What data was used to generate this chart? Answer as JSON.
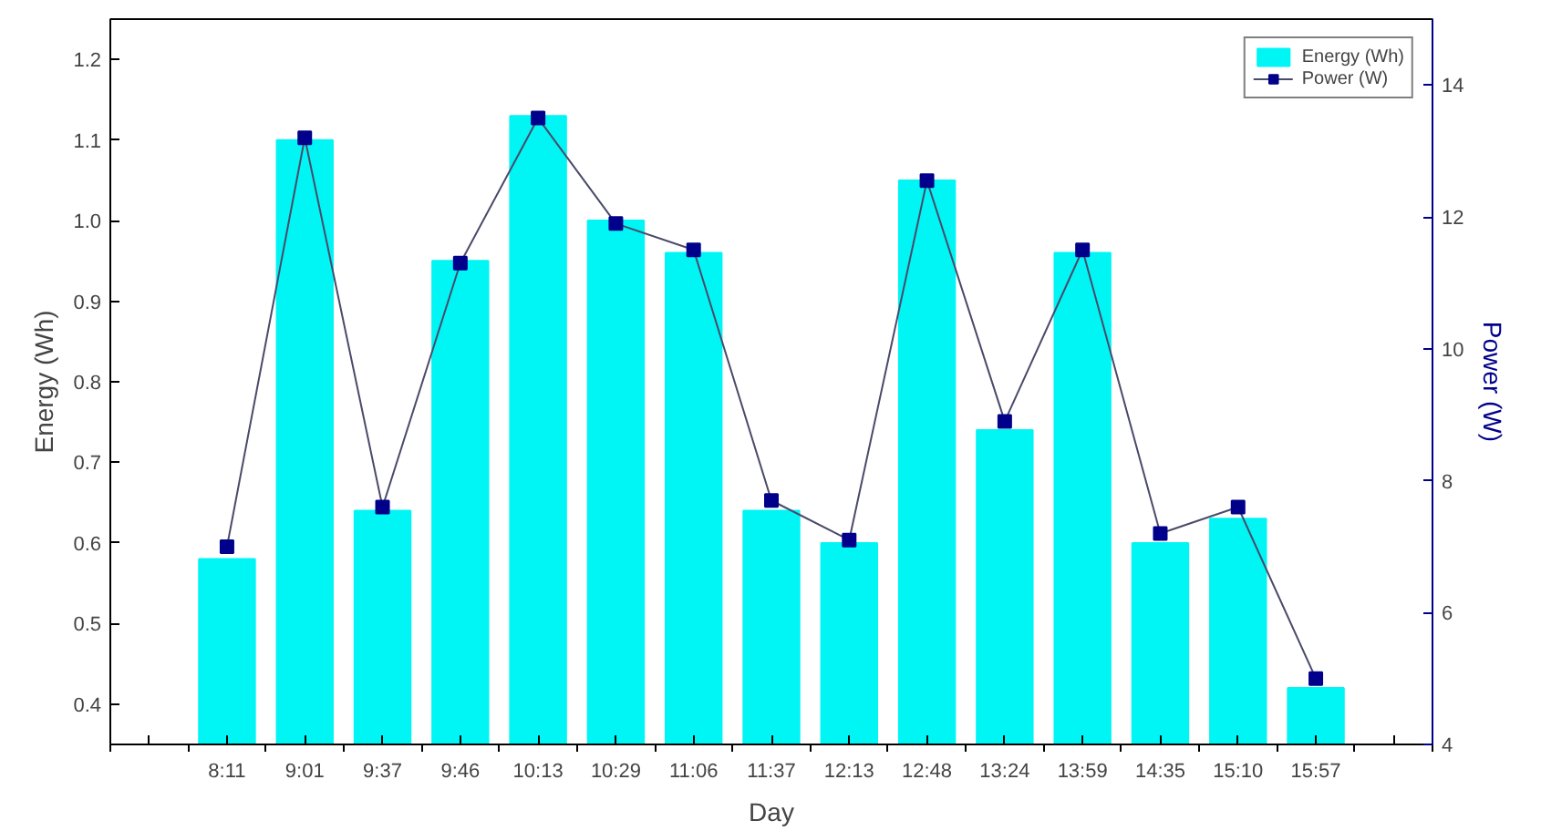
{
  "chart_data": {
    "type": "bar",
    "xlabel": "Day",
    "ylabel": "Energy (Wh)",
    "y2label": "Power (W)",
    "categories": [
      "8:11",
      "9:01",
      "9:37",
      "9:46",
      "10:13",
      "10:29",
      "11:06",
      "11:37",
      "12:13",
      "12:48",
      "13:24",
      "13:59",
      "14:35",
      "15:10",
      "15:57"
    ],
    "series": [
      {
        "name": "Energy (Wh)",
        "color": "#00f5f5",
        "values": [
          0.58,
          1.1,
          0.64,
          0.95,
          1.13,
          1.0,
          0.96,
          0.64,
          0.6,
          1.05,
          0.74,
          0.96,
          0.6,
          0.63,
          0.42
        ]
      },
      {
        "name": "Power (W)",
        "type": "line",
        "axis": "y2",
        "color": "#00008b",
        "marker": "square",
        "values": [
          7.0,
          13.2,
          7.6,
          11.3,
          13.5,
          11.9,
          11.5,
          7.7,
          7.1,
          12.55,
          8.9,
          11.5,
          7.2,
          7.6,
          5.0
        ]
      }
    ],
    "ylim": [
      0.35,
      1.25
    ],
    "yticks": [
      0.4,
      0.5,
      0.6,
      0.7,
      0.8,
      0.9,
      {
        "value": 1,
        "label": "1.0"
      },
      1.1,
      1.2
    ],
    "y2lim": [
      4,
      15
    ],
    "y2ticks": [
      4,
      6,
      8,
      10,
      12,
      14
    ],
    "grid": false,
    "legend": "top right"
  }
}
